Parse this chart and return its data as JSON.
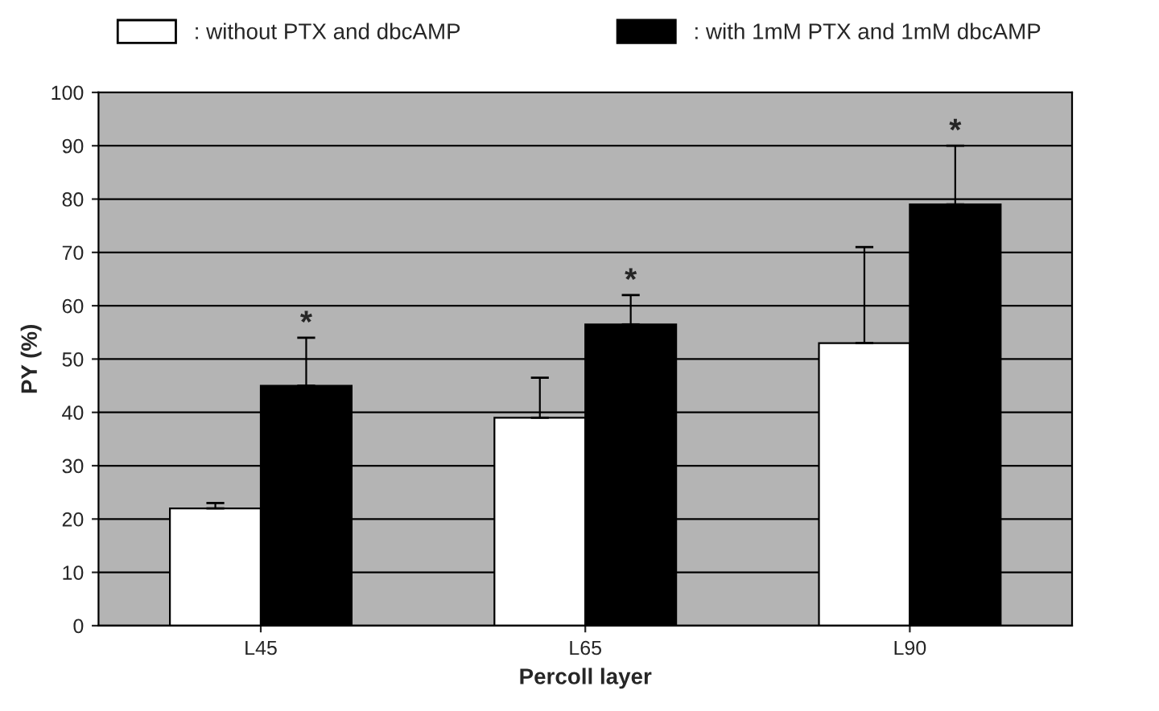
{
  "chart_data": {
    "type": "bar",
    "xlabel": "Percoll layer",
    "ylabel": "PY (%)",
    "categories": [
      "L45",
      "L65",
      "L90"
    ],
    "series": [
      {
        "name": ": without PTX and dbcAMP",
        "color": "#ffffff",
        "values": [
          22,
          39,
          53
        ],
        "errors": [
          [
            22,
            23
          ],
          [
            39,
            46.5
          ],
          [
            53,
            71
          ]
        ]
      },
      {
        "name": ": with 1mM PTX and 1mM dbcAMP",
        "color": "#000000",
        "values": [
          45,
          56.5,
          79
        ],
        "errors": [
          [
            45,
            54
          ],
          [
            56.5,
            62
          ],
          [
            79,
            90
          ]
        ]
      }
    ],
    "annotations": [
      "*",
      "*",
      "*"
    ],
    "ylim": [
      0,
      100
    ],
    "yticks": [
      0,
      10,
      20,
      30,
      40,
      50,
      60,
      70,
      80,
      90,
      100
    ],
    "grid": "y",
    "legend": "top"
  }
}
